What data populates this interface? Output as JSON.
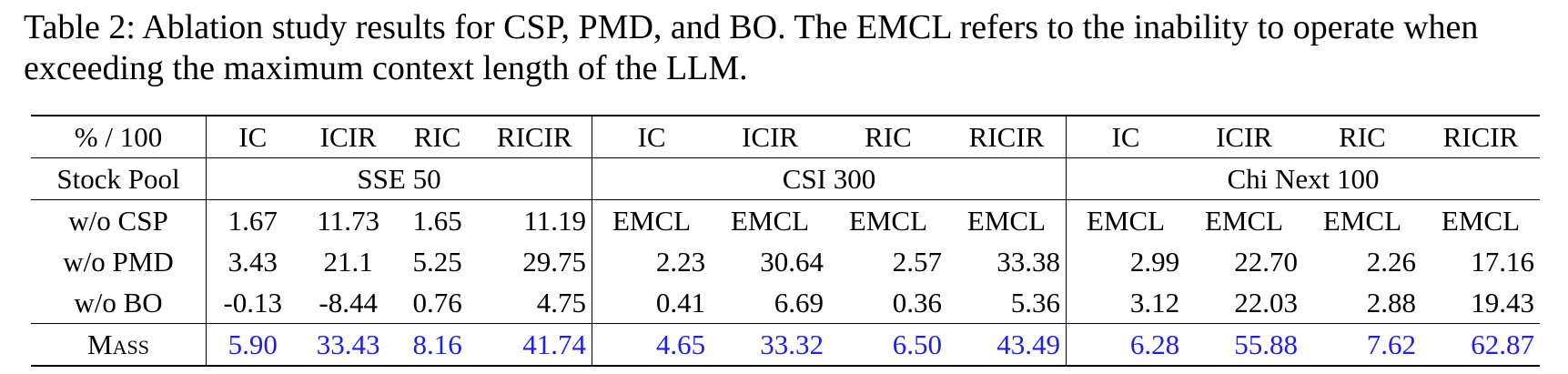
{
  "caption": "Table 2: Ablation study results for CSP, PMD, and BO. The EMCL refers to the inability to operate when exceeding the maximum context length of the LLM.",
  "table": {
    "corner_label": "% / 100",
    "metrics": [
      "IC",
      "ICIR",
      "RIC",
      "RICIR"
    ],
    "stock_pool_label": "Stock Pool",
    "pools": [
      "SSE 50",
      "CSI 300",
      "Chi Next 100"
    ],
    "rows": [
      {
        "label": "w/o CSP",
        "sse": [
          "1.67",
          "11.73",
          "1.65",
          "11.19"
        ],
        "csi": [
          "EMCL",
          "EMCL",
          "EMCL",
          "EMCL"
        ],
        "chi": [
          "EMCL",
          "EMCL",
          "EMCL",
          "EMCL"
        ]
      },
      {
        "label": "w/o PMD",
        "sse": [
          "3.43",
          "21.1",
          "5.25",
          "29.75"
        ],
        "csi": [
          "2.23",
          "30.64",
          "2.57",
          "33.38"
        ],
        "chi": [
          "2.99",
          "22.70",
          "2.26",
          "17.16"
        ]
      },
      {
        "label": "w/o BO",
        "sse": [
          "-0.13",
          "-8.44",
          "0.76",
          "4.75"
        ],
        "csi": [
          "0.41",
          "6.69",
          "0.36",
          "5.36"
        ],
        "chi": [
          "3.12",
          "22.03",
          "2.88",
          "19.43"
        ]
      },
      {
        "label": "Mass",
        "sse": [
          "5.90",
          "33.43",
          "8.16",
          "41.74"
        ],
        "csi": [
          "4.65",
          "33.32",
          "6.50",
          "43.49"
        ],
        "chi": [
          "6.28",
          "55.88",
          "7.62",
          "62.87"
        ]
      }
    ],
    "highlight_color": "#1f1fe6"
  }
}
